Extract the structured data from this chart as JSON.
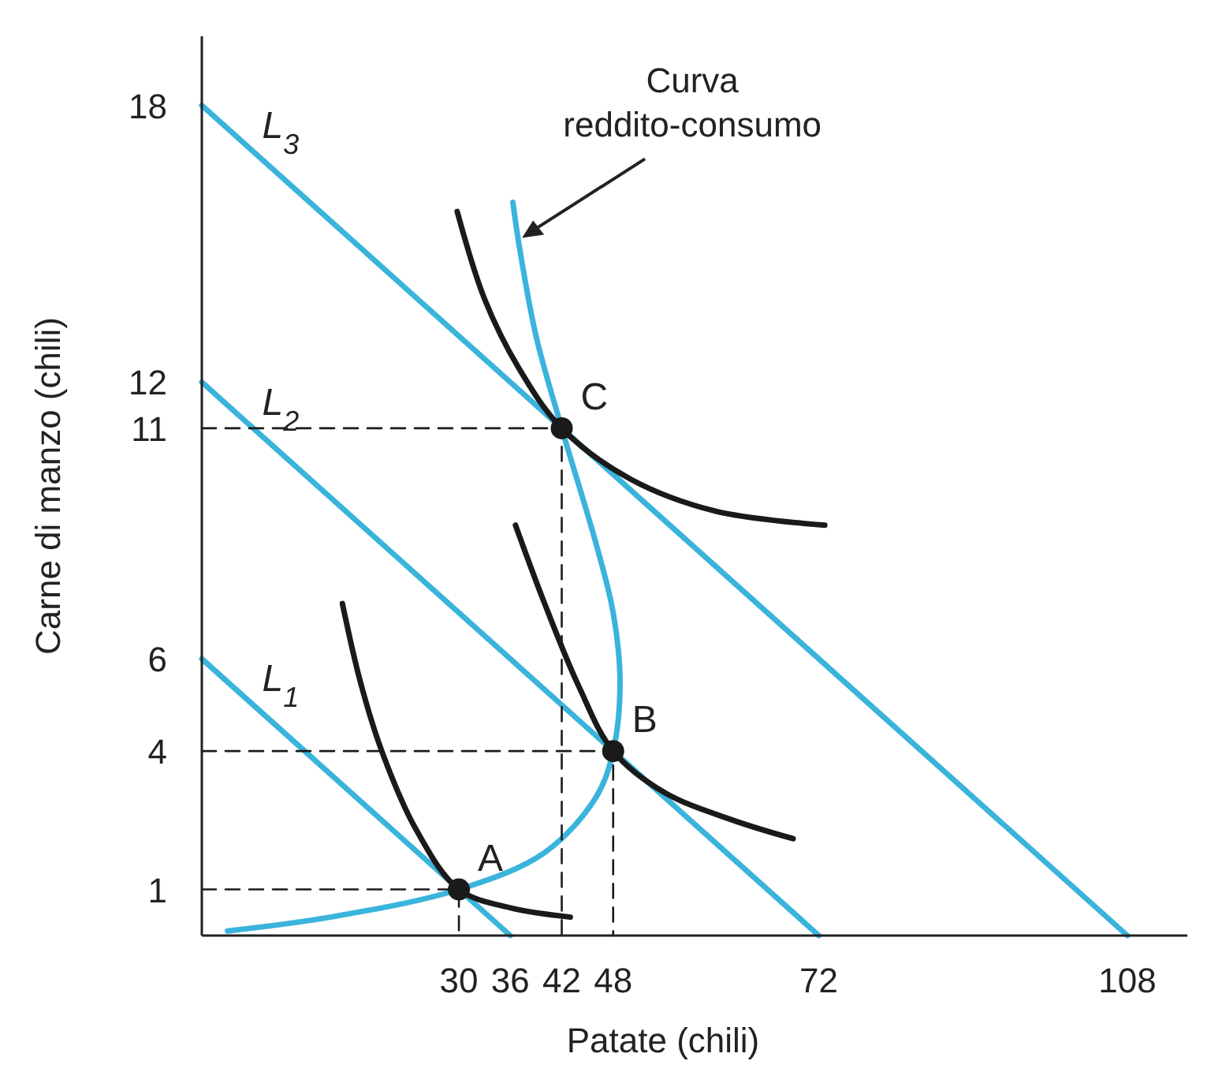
{
  "chart_data": {
    "type": "line",
    "xlabel": "Patate (chili)",
    "ylabel": "Carne di manzo (chili)",
    "xlim": [
      0,
      115
    ],
    "ylim": [
      0,
      19.5
    ],
    "xticks": [
      30,
      36,
      42,
      48,
      72,
      108
    ],
    "yticks": [
      1,
      4,
      6,
      11,
      12,
      18
    ],
    "grid": false,
    "marker": "none",
    "series": [
      {
        "color": "#3ab4dc",
        "x": [
          0,
          36
        ],
        "values": [
          6,
          0
        ]
      },
      {
        "color": "#3ab4dc",
        "x": [
          0,
          72
        ],
        "values": [
          12,
          0
        ]
      },
      {
        "color": "#3ab4dc",
        "x": [
          0,
          108
        ],
        "values": [
          18,
          0
        ]
      },
      {
        "color": "#3ab4dc",
        "x": [
          3,
          15,
          30,
          40,
          46,
          48,
          48.8,
          48,
          46,
          42,
          39,
          37,
          36.3
        ],
        "values": [
          0.1,
          0.4,
          1,
          1.8,
          3,
          4,
          5.5,
          7,
          8.5,
          11,
          13,
          15,
          15.9
        ]
      },
      {
        "type": "line",
        "color": "#1a1a1a",
        "x": [
          16.4,
          18.5,
          21,
          25,
          30,
          36,
          43
        ],
        "values": [
          7.2,
          5.5,
          4,
          2.3,
          1,
          0.6,
          0.4
        ]
      },
      {
        "type": "line",
        "color": "#1a1a1a",
        "x": [
          36.6,
          40,
          44,
          48,
          54,
          62,
          69
        ],
        "values": [
          8.9,
          7.2,
          5.4,
          4,
          3.1,
          2.5,
          2.1
        ]
      },
      {
        "type": "line",
        "color": "#1a1a1a",
        "x": [
          29.8,
          33,
          37,
          42,
          50,
          60,
          72.7
        ],
        "values": [
          15.7,
          13.8,
          12.3,
          11,
          9.9,
          9.2,
          8.9
        ]
      },
      {
        "type": "line",
        "color": "#1a1a1a",
        "line_style": "dashed",
        "x": [
          0,
          30,
          30
        ],
        "values": [
          1,
          1,
          0
        ]
      },
      {
        "type": "line",
        "color": "#1a1a1a",
        "line_style": "dashed",
        "x": [
          0,
          48,
          48
        ],
        "values": [
          4,
          4,
          0
        ]
      },
      {
        "type": "line",
        "color": "#1a1a1a",
        "line_style": "dashed",
        "x": [
          0,
          42,
          42
        ],
        "values": [
          11,
          11,
          0
        ]
      },
      {
        "type": "scatter",
        "color": "#1a1a1a",
        "marker": "circle",
        "x": [
          30,
          48,
          42
        ],
        "values": [
          1,
          4,
          11
        ]
      }
    ],
    "annotations": [
      {
        "text": "L$_{3}$",
        "x": 3,
        "y": 17.5
      },
      {
        "text": "L$_{2}$",
        "x": 3,
        "y": 11.5
      },
      {
        "text": "L$_{1}$",
        "x": 3,
        "y": 5.5
      },
      {
        "text": "A",
        "x": 30,
        "y": 1
      },
      {
        "text": "B",
        "x": 48,
        "y": 4
      },
      {
        "text": "C",
        "x": 42,
        "y": 11
      },
      {
        "text": "Curva reddito-consumo",
        "x": 37,
        "y": 15.2
      }
    ]
  }
}
